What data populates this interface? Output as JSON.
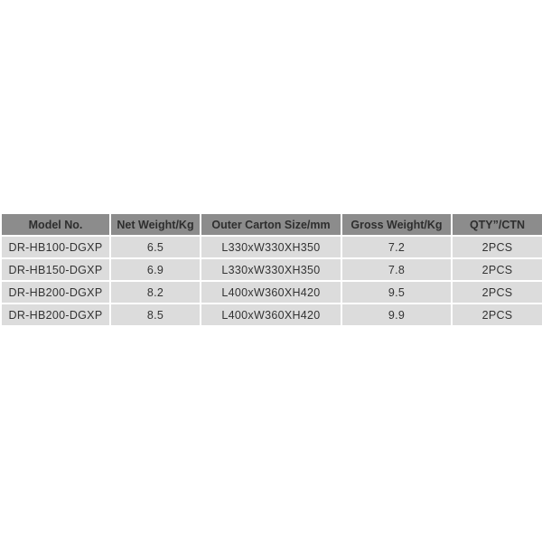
{
  "table": {
    "headers": [
      "Model No.",
      "Net Weight/Kg",
      "Outer Carton Size/mm",
      "Gross Weight/Kg",
      "QTY”/CTN"
    ],
    "rows": [
      [
        "DR-HB100-DGXP",
        "6.5",
        "L330xW330XH350",
        "7.2",
        "2PCS"
      ],
      [
        "DR-HB150-DGXP",
        "6.9",
        "L330xW330XH350",
        "7.8",
        "2PCS"
      ],
      [
        "DR-HB200-DGXP",
        "8.2",
        "L400xW360XH420",
        "9.5",
        "2PCS"
      ],
      [
        "DR-HB200-DGXP",
        "8.5",
        "L400xW360XH420",
        "9.9",
        "2PCS"
      ]
    ]
  }
}
